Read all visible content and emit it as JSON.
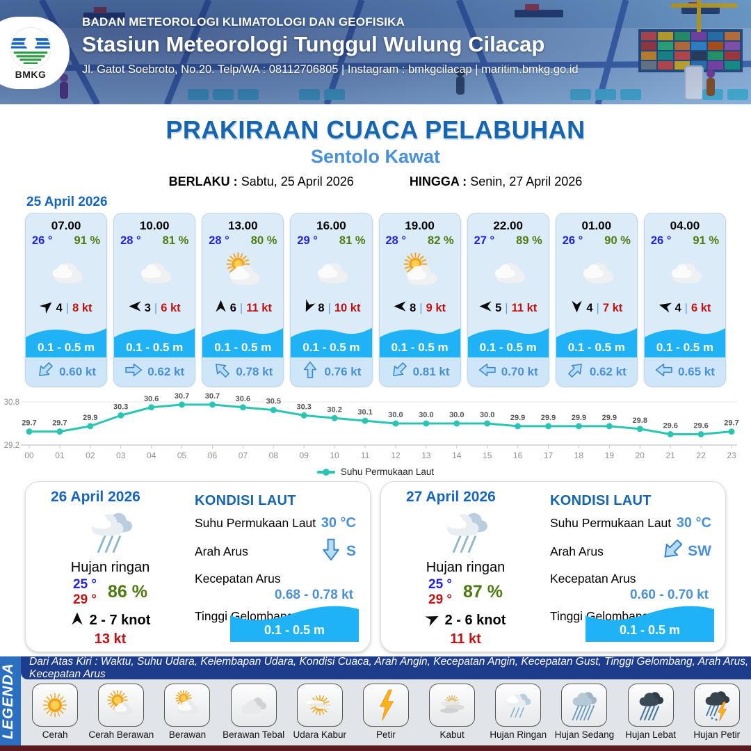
{
  "header": {
    "org": "BADAN METEOROLOGI KLIMATOLOGI DAN GEOFISIKA",
    "station": "Stasiun Meteorologi Tunggul Wulung Cilacap",
    "contact": "Jl. Gatot Soebroto, No.20. Telp/WA : 08112706805 | Instagram : bmkgcilacap | maritim.bmkg.go.id",
    "logo_label": "BMKG"
  },
  "title": {
    "main": "PRAKIRAAN CUACA PELABUHAN",
    "subtitle": "Sentolo Kawat",
    "berlaku_label": "BERLAKU :",
    "berlaku_value": "Sabtu, 25 April 2026",
    "hingga_label": "HINGGA :",
    "hingga_value": "Senin, 27 April 2026"
  },
  "hourly": {
    "date": "25 April 2026",
    "wave_label_all": "0.1 - 0.5 m",
    "cards": [
      {
        "time": "07.00",
        "temp": "26 °",
        "humidity": "91 %",
        "icon": "cloud",
        "wind_value": "4",
        "wind_dir": "NE",
        "wind_deg": -40,
        "gust": "8 kt",
        "wave": "0.1 - 0.5 m",
        "current_speed": "0.60 kt",
        "current_dir": "SW",
        "current_deg": 135
      },
      {
        "time": "10.00",
        "temp": "28 °",
        "humidity": "81 %",
        "icon": "cloud",
        "wind_value": "3",
        "wind_dir": "W",
        "wind_deg": 180,
        "gust": "6 kt",
        "wave": "0.1 - 0.5 m",
        "current_speed": "0.62 kt",
        "current_dir": "E",
        "current_deg": 0
      },
      {
        "time": "13.00",
        "temp": "28 °",
        "humidity": "80 %",
        "icon": "cloud-sun",
        "wind_value": "6",
        "wind_dir": "N",
        "wind_deg": -90,
        "gust": "11 kt",
        "wave": "0.1 - 0.5 m",
        "current_speed": "0.78 kt",
        "current_dir": "NW",
        "current_deg": -135
      },
      {
        "time": "16.00",
        "temp": "29 °",
        "humidity": "81 %",
        "icon": "cloud",
        "wind_value": "8",
        "wind_dir": "SSW",
        "wind_deg": 115,
        "gust": "10 kt",
        "wave": "0.1 - 0.5 m",
        "current_speed": "0.76 kt",
        "current_dir": "N",
        "current_deg": -90
      },
      {
        "time": "19.00",
        "temp": "28 °",
        "humidity": "82 %",
        "icon": "cloud-sun",
        "wind_value": "8",
        "wind_dir": "W",
        "wind_deg": 180,
        "gust": "9 kt",
        "wave": "0.1 - 0.5 m",
        "current_speed": "0.81 kt",
        "current_dir": "SW",
        "current_deg": 135
      },
      {
        "time": "22.00",
        "temp": "27 °",
        "humidity": "89 %",
        "icon": "cloud",
        "wind_value": "5",
        "wind_dir": "W",
        "wind_deg": 180,
        "gust": "11 kt",
        "wave": "0.1 - 0.5 m",
        "current_speed": "0.70 kt",
        "current_dir": "W",
        "current_deg": 180
      },
      {
        "time": "01.00",
        "temp": "26 °",
        "humidity": "90 %",
        "icon": "cloud",
        "wind_value": "4",
        "wind_dir": "S",
        "wind_deg": 90,
        "gust": "7 kt",
        "wave": "0.1 - 0.5 m",
        "current_speed": "0.62 kt",
        "current_dir": "NE",
        "current_deg": -45
      },
      {
        "time": "04.00",
        "temp": "26 °",
        "humidity": "91 %",
        "icon": "cloud",
        "wind_value": "4",
        "wind_dir": "WSW",
        "wind_deg": 195,
        "gust": "6 kt",
        "wave": "0.1 - 0.5 m",
        "current_speed": "0.65 kt",
        "current_dir": "W",
        "current_deg": 180
      }
    ]
  },
  "chart_data": {
    "type": "line",
    "series_name": "Suhu Permukaan Laut",
    "x": [
      "00",
      "01",
      "02",
      "03",
      "04",
      "05",
      "06",
      "07",
      "08",
      "09",
      "10",
      "11",
      "12",
      "13",
      "14",
      "15",
      "16",
      "17",
      "18",
      "19",
      "20",
      "21",
      "22",
      "23"
    ],
    "values": [
      29.7,
      29.7,
      29.9,
      30.3,
      30.6,
      30.7,
      30.7,
      30.6,
      30.5,
      30.3,
      30.2,
      30.1,
      30.0,
      30.0,
      30.0,
      30.0,
      29.9,
      29.9,
      29.9,
      29.9,
      29.8,
      29.6,
      29.6,
      29.7
    ],
    "ylim": [
      29.2,
      30.8
    ],
    "ytick_labels": [
      "30.8",
      "29.2"
    ],
    "grid": true,
    "legend_position": "bottom",
    "line_color": "#29c5b2"
  },
  "daily": [
    {
      "date": "26 April 2026",
      "icon": "hujan-ringan",
      "condition": "Hujan ringan",
      "temp_min": "25 °",
      "temp_max": "29 °",
      "humidity": "86 %",
      "wind_range": "2  - 7 knot",
      "wind_dir": "N",
      "wind_deg": -90,
      "gust": "13 kt",
      "sea": {
        "title": "KONDISI LAUT",
        "sst_label": "Suhu Permukaan Laut",
        "sst_value": "30 °C",
        "current_dir_label": "Arah Arus",
        "current_dir": "S",
        "current_deg": 90,
        "current_speed_label": "Kecepatan Arus",
        "current_speed": "0.68 -  0.78 kt",
        "wave_label": "Tinggi Gelombang",
        "wave_value": "0.1 - 0.5 m"
      }
    },
    {
      "date": "27 April 2026",
      "icon": "hujan-ringan",
      "condition": "Hujan ringan",
      "temp_min": "25 °",
      "temp_max": "29 °",
      "humidity": "87 %",
      "wind_range": "2  - 6 knot",
      "wind_dir": "ENE",
      "wind_deg": -25,
      "gust": "11 kt",
      "sea": {
        "title": "KONDISI LAUT",
        "sst_label": "Suhu Permukaan Laut",
        "sst_value": "30 °C",
        "current_dir_label": "Arah Arus",
        "current_dir": "SW",
        "current_deg": 135,
        "current_speed_label": "Kecepatan Arus",
        "current_speed": "0.60 - 0.70 kt",
        "wave_label": "Tinggi Gelombang",
        "wave_value": "0.1 - 0.5 m"
      }
    }
  ],
  "legend": {
    "title": "LEGENDA",
    "caption": "Dari Atas Kiri : Waktu, Suhu Udara, Kelembapan Udara, Kondisi Cuaca, Arah Angin, Kecepatan Angin, Kecepatan Gust, Tinggi Gelombang, Arah Arus, Kecepatan Arus",
    "items": [
      {
        "label": "Cerah",
        "icon": "cerah"
      },
      {
        "label": "Cerah Berawan",
        "icon": "cerah-berawan"
      },
      {
        "label": "Berawan",
        "icon": "berawan"
      },
      {
        "label": "Berawan Tebal",
        "icon": "berawan-tebal"
      },
      {
        "label": "Udara Kabur",
        "icon": "udara-kabur"
      },
      {
        "label": "Petir",
        "icon": "petir"
      },
      {
        "label": "Kabut",
        "icon": "kabut"
      },
      {
        "label": "Hujan Ringan",
        "icon": "hujan-ringan"
      },
      {
        "label": "Hujan Sedang",
        "icon": "hujan-sedang"
      },
      {
        "label": "Hujan Lebat",
        "icon": "hujan-lebat"
      },
      {
        "label": "Hujan Petir",
        "icon": "hujan-petir"
      }
    ]
  },
  "colors": {
    "title_blue": "#1565b0",
    "subtitle_blue": "#4a90d9",
    "temp_blue": "#2222dd",
    "humidity_green": "#4e7b10",
    "gust_red": "#c21212",
    "wave_blue": "#1fb3f5",
    "chart_teal": "#29c5b2",
    "legend_bar_navy": "#1e3c8c",
    "legend_strip_blue": "#2a6fc0"
  }
}
